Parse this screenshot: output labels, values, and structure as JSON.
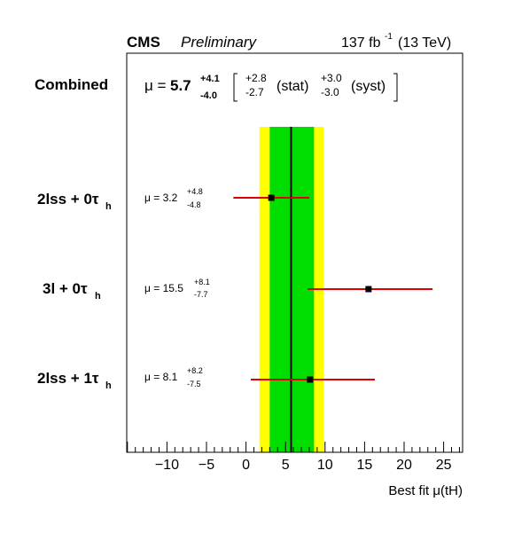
{
  "header": {
    "experiment": "CMS",
    "tag": "Preliminary",
    "lumi_base": "137 fb",
    "lumi_exp": "-1",
    "lumi_energy": "(13 TeV)"
  },
  "combined": {
    "label": "Combined",
    "mu_prefix": "μ = ",
    "mu_value": "5.7",
    "err_up": "+4.1",
    "err_down": "-4.0",
    "stat_up": "+2.8",
    "stat_down": "-2.7",
    "stat_label": "(stat)",
    "syst_up": "+3.0",
    "syst_down": "-3.0",
    "syst_label": "(syst)"
  },
  "channels": [
    {
      "label_main": "2lss + 0τ",
      "label_sub": "h",
      "mu_text": "μ = 3.2",
      "err_up": "+4.8",
      "err_down": "-4.8"
    },
    {
      "label_main": "3l + 0τ",
      "label_sub": "h",
      "mu_text": "μ = 15.5",
      "err_up": "+8.1",
      "err_down": "-7.7"
    },
    {
      "label_main": "2lss + 1τ",
      "label_sub": "h",
      "mu_text": "μ = 8.1",
      "err_up": "+8.2",
      "err_down": "-7.5"
    }
  ],
  "colors": {
    "band_1sigma": "#00dd00",
    "band_2sigma": "#ffff00",
    "error_bar": "#e00000",
    "marker": "#000000",
    "central_line": "#000000"
  },
  "chart_data": {
    "type": "scatter",
    "orientation": "horizontal",
    "xlabel": "Best fit μ(tH)",
    "xlim": [
      -15,
      28
    ],
    "x_ticks": [
      -10,
      -5,
      0,
      5,
      10,
      15,
      20,
      25
    ],
    "x_tick_labels": [
      "−10",
      "−5",
      "0",
      "5",
      "10",
      "15",
      "20",
      "25"
    ],
    "combined": {
      "value": 5.7,
      "one_sigma": [
        3.0,
        8.6
      ],
      "two_sigma": [
        1.7,
        9.8
      ]
    },
    "points": [
      {
        "name": "2lss + 0τh",
        "value": 3.2,
        "err_low": 4.8,
        "err_high": 4.8
      },
      {
        "name": "3l + 0τh",
        "value": 15.5,
        "err_low": 7.7,
        "err_high": 8.1
      },
      {
        "name": "2lss + 1τh",
        "value": 8.1,
        "err_low": 7.5,
        "err_high": 8.2
      }
    ]
  }
}
